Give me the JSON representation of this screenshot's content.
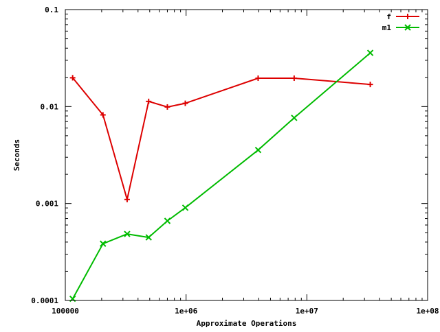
{
  "chart_data": {
    "type": "line",
    "xlabel": "Approximate Operations",
    "ylabel": "Seconds",
    "x_scale": "log",
    "y_scale": "log",
    "xlim": [
      100000,
      100000000
    ],
    "ylim": [
      0.0001,
      0.1
    ],
    "x_ticks": [
      {
        "value": 100000,
        "label": "100000"
      },
      {
        "value": 1000000,
        "label": "1e+06"
      },
      {
        "value": 10000000,
        "label": "1e+07"
      },
      {
        "value": 100000000,
        "label": "1e+08"
      }
    ],
    "y_ticks": [
      {
        "value": 0.0001,
        "label": "0.0001"
      },
      {
        "value": 0.001,
        "label": "0.001"
      },
      {
        "value": 0.01,
        "label": "0.01"
      },
      {
        "value": 0.1,
        "label": "0.1"
      }
    ],
    "grid": false,
    "legend_position": "top-right",
    "series": [
      {
        "name": "f",
        "color": "#dd0000",
        "marker": "plus",
        "points": [
          [
            115000,
            0.0198
          ],
          [
            205000,
            0.0082
          ],
          [
            325000,
            0.0011
          ],
          [
            490000,
            0.0113
          ],
          [
            700000,
            0.0099
          ],
          [
            985000,
            0.0108
          ],
          [
            3950000,
            0.0196
          ],
          [
            7850000,
            0.0196
          ],
          [
            33500000,
            0.0169
          ]
        ]
      },
      {
        "name": "m1",
        "color": "#00bb00",
        "marker": "cross",
        "points": [
          [
            115000,
            0.000104
          ],
          [
            205000,
            0.000385
          ],
          [
            325000,
            0.000485
          ],
          [
            490000,
            0.000447
          ],
          [
            700000,
            0.000662
          ],
          [
            985000,
            0.000905
          ],
          [
            3950000,
            0.00356
          ],
          [
            7850000,
            0.00765
          ],
          [
            33500000,
            0.0358
          ]
        ]
      }
    ]
  }
}
